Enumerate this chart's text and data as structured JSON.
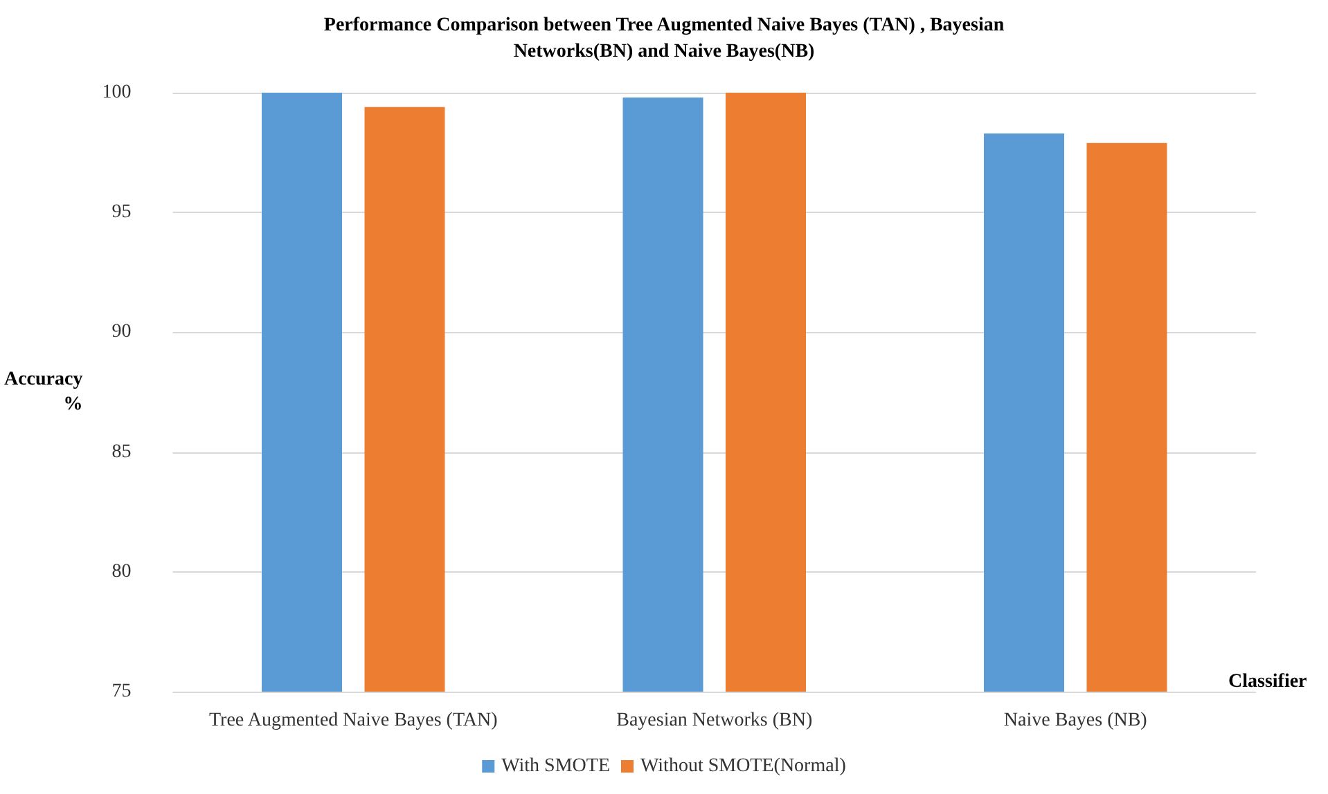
{
  "chart_data": {
    "type": "bar",
    "title": "Performance Comparison between Tree Augmented Naive Bayes (TAN) , Bayesian\nNetworks(BN) and Naive Bayes(NB)",
    "xlabel": "Classifier",
    "ylabel": "Accuracy\n%",
    "categories": [
      "Tree Augmented Naive Bayes (TAN)",
      "Bayesian Networks (BN)",
      "Naive Bayes (NB)"
    ],
    "series": [
      {
        "name": "With SMOTE",
        "color": "#5b9bd5",
        "values": [
          100,
          99.8,
          98.3
        ]
      },
      {
        "name": "Without SMOTE(Normal)",
        "color": "#ed7d31",
        "values": [
          99.4,
          100,
          97.9
        ]
      }
    ],
    "ylim": [
      75,
      100
    ],
    "yticks": [
      75,
      80,
      85,
      90,
      95,
      100
    ],
    "grid": "y",
    "legend": "bottom"
  }
}
